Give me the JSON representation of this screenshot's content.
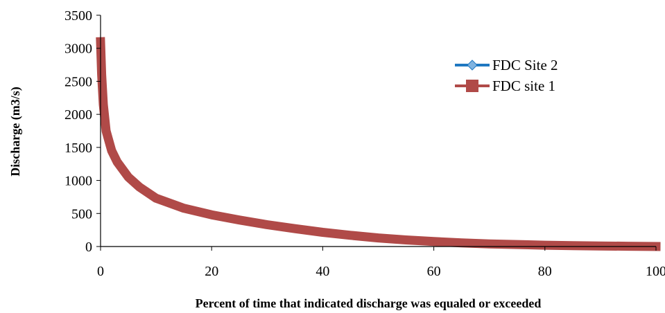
{
  "chart_data": {
    "type": "line",
    "xlabel": "Percent of time that indicated discharge was equaled or exceeded",
    "ylabel": "Discharge (m3/s)",
    "xlim": [
      0,
      100
    ],
    "ylim": [
      0,
      3500
    ],
    "xticks": [
      0,
      20,
      40,
      60,
      80,
      100
    ],
    "yticks": [
      0,
      500,
      1000,
      1500,
      2000,
      2500,
      3000,
      3500
    ],
    "x_tick_labels": [
      "0",
      "20",
      "40",
      "60",
      "80",
      "100"
    ],
    "y_tick_labels": [
      "0",
      "500",
      "1000",
      "1500",
      "2000",
      "2500",
      "3000",
      "3500"
    ],
    "grid": false,
    "legend_position": "top-right",
    "x": [
      0,
      0.2,
      0.5,
      1,
      2,
      3,
      5,
      7,
      10,
      15,
      20,
      25,
      30,
      35,
      40,
      45,
      50,
      55,
      60,
      65,
      70,
      75,
      80,
      85,
      90,
      95,
      100
    ],
    "series": [
      {
        "name": "FDC Site 2",
        "color": "#1f78c1",
        "marker": "diamond",
        "values": [
          3100,
          2600,
          2150,
          1750,
          1450,
          1280,
          1050,
          900,
          730,
          580,
          480,
          400,
          330,
          270,
          215,
          170,
          130,
          100,
          75,
          55,
          40,
          30,
          20,
          14,
          8,
          4,
          1
        ]
      },
      {
        "name": "FDC site 1",
        "color": "#b04a48",
        "marker": "square",
        "values": [
          3100,
          2600,
          2150,
          1750,
          1450,
          1280,
          1050,
          900,
          730,
          580,
          480,
          400,
          330,
          270,
          215,
          170,
          130,
          100,
          75,
          55,
          40,
          30,
          20,
          14,
          8,
          4,
          1
        ]
      }
    ]
  }
}
